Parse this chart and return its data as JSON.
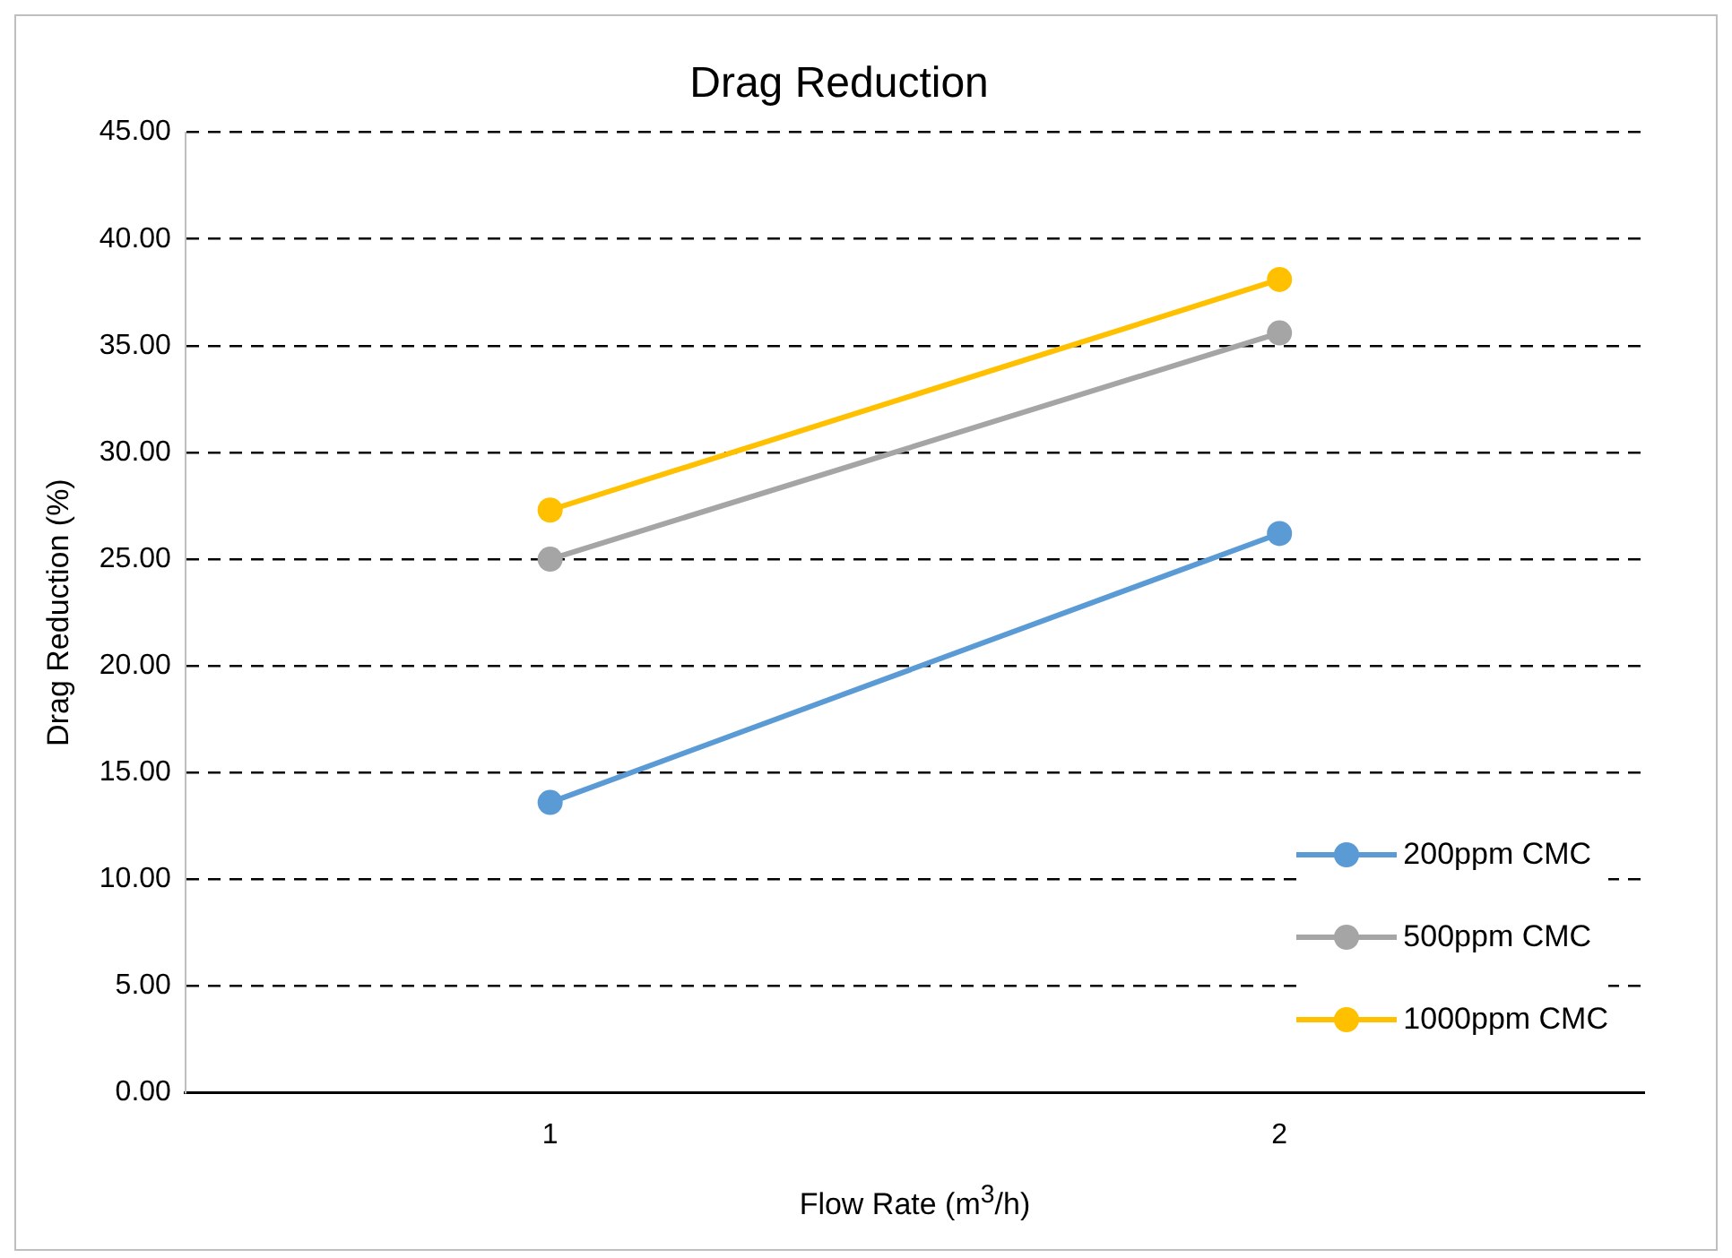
{
  "chart_data": {
    "type": "line",
    "title": "Drag Reduction",
    "xlabel": "Flow Rate (m$^{3}$/h)",
    "ylabel": "Drag Reduction (%)",
    "x": [
      1,
      2
    ],
    "xlim": [
      0.5,
      2.5
    ],
    "xticks": [
      1,
      2
    ],
    "series": [
      {
        "name": "200ppm CMC",
        "color": "#5b9bd5",
        "values": [
          13.6,
          26.2
        ]
      },
      {
        "name": "500ppm CMC",
        "color": "#a5a5a5",
        "values": [
          25.0,
          35.6
        ]
      },
      {
        "name": "1000ppm CMC",
        "color": "#ffc000",
        "values": [
          27.3,
          38.1
        ]
      }
    ],
    "ylim": [
      0,
      45
    ],
    "yticks": [
      {
        "value": 0,
        "label": "0.00"
      },
      {
        "value": 5,
        "label": "5.00"
      },
      {
        "value": 10,
        "label": "10.00"
      },
      {
        "value": 15,
        "label": "15.00"
      },
      {
        "value": 20,
        "label": "20.00"
      },
      {
        "value": 25,
        "label": "25.00"
      },
      {
        "value": 30,
        "label": "30.00"
      },
      {
        "value": 35,
        "label": "35.00"
      },
      {
        "value": 40,
        "label": "40.00"
      },
      {
        "value": 45,
        "label": "45.00"
      }
    ],
    "grid": "y",
    "legend": "bottom right",
    "marker": "circle",
    "line_style": "solid"
  }
}
